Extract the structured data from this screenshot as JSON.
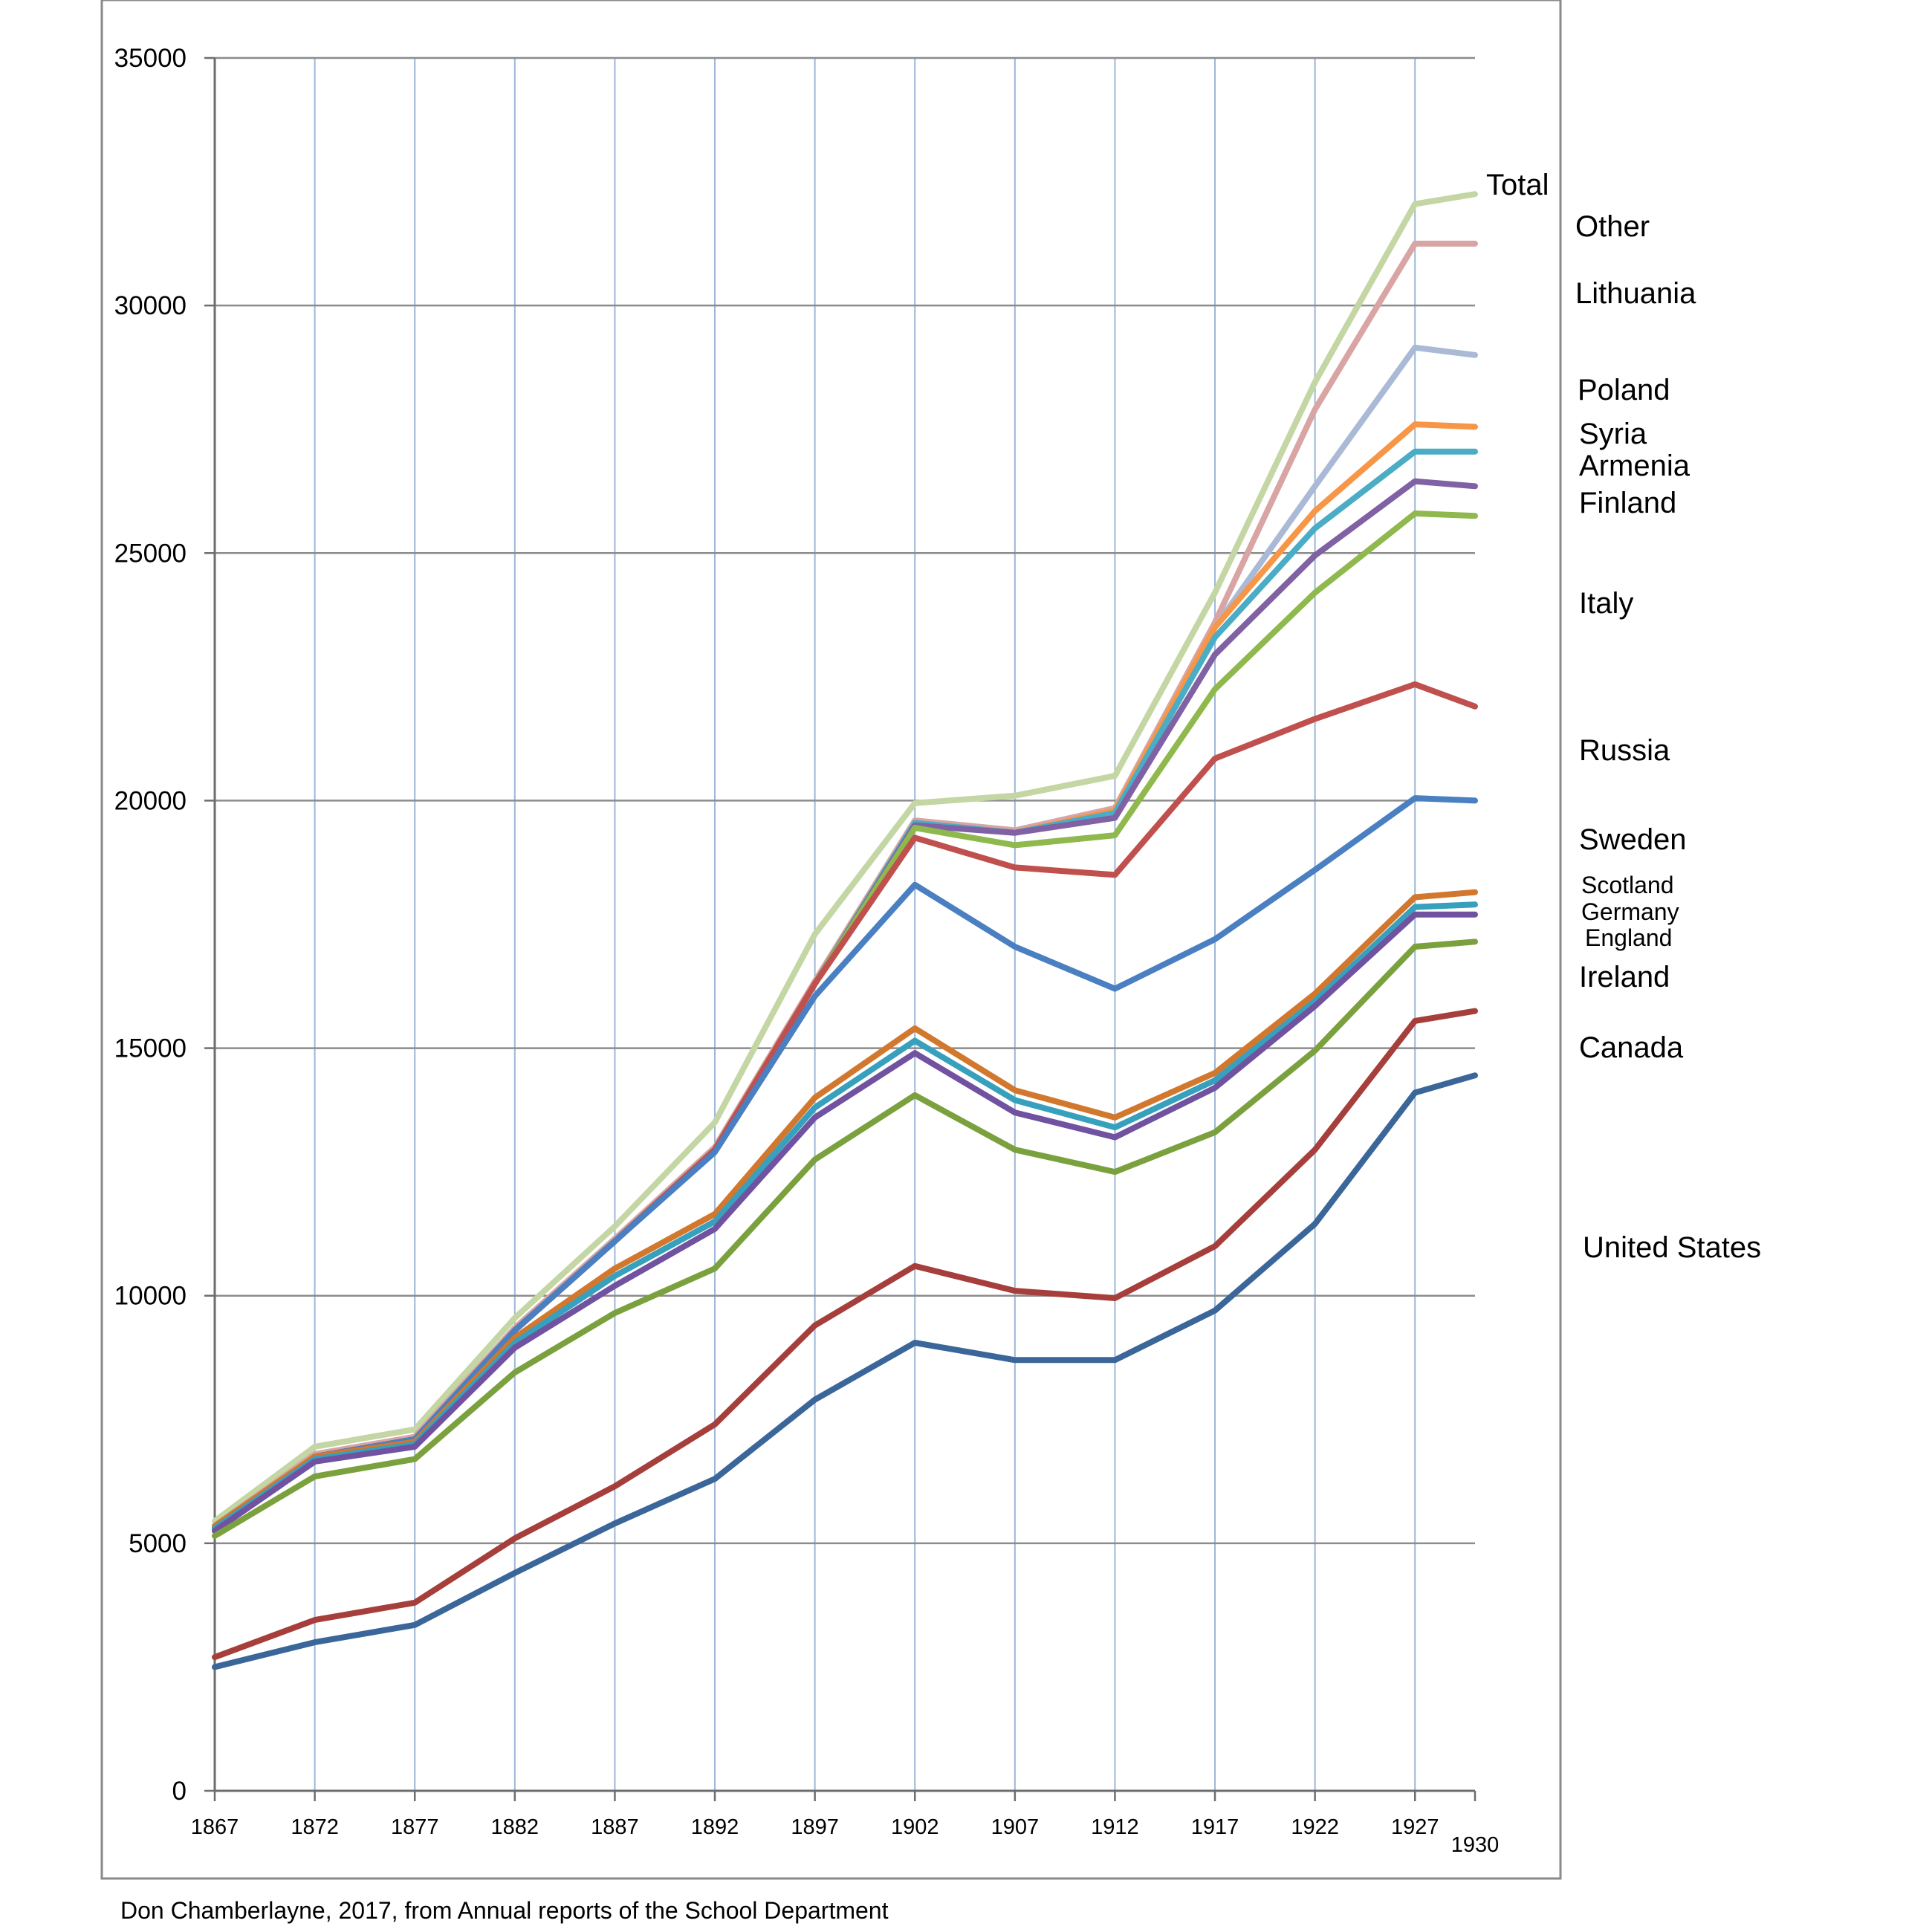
{
  "chart_data": {
    "type": "line",
    "title": "",
    "xlabel": "",
    "ylabel": "",
    "ylim": [
      0,
      35000
    ],
    "xlim": [
      1867,
      1930
    ],
    "y_ticks": [
      "0",
      "5000",
      "10000",
      "15000",
      "20000",
      "25000",
      "30000",
      "35000"
    ],
    "x_ticks": [
      "1867",
      "1872",
      "1877",
      "1882",
      "1887",
      "1892",
      "1897",
      "1902",
      "1907",
      "1912",
      "1917",
      "1922",
      "1927",
      "1930"
    ],
    "grid": {
      "horizontal": true,
      "vertical": true
    },
    "legend": "series labels at the right end of each line",
    "credit": "Don Chamberlayne, 2017, from Annual reports of the School Department",
    "series": [
      {
        "name": "United States",
        "color": "#3a6699",
        "x": [
          1867,
          1872,
          1877,
          1882,
          1887,
          1892,
          1897,
          1902,
          1907,
          1912,
          1917,
          1922,
          1927,
          1930
        ],
        "y": [
          2500,
          3000,
          3350,
          4400,
          5400,
          6300,
          7900,
          9050,
          8700,
          8700,
          9700,
          11450,
          14100,
          14450
        ]
      },
      {
        "name": "Canada",
        "color": "#a63f3c",
        "x": [
          1867,
          1872,
          1877,
          1882,
          1887,
          1892,
          1897,
          1902,
          1907,
          1912,
          1917,
          1922,
          1927,
          1930
        ],
        "y": [
          2700,
          3450,
          3800,
          5100,
          6150,
          7400,
          9400,
          10600,
          10100,
          9950,
          11000,
          12950,
          15550,
          15750
        ]
      },
      {
        "name": "Ireland",
        "color": "#7ba13e",
        "x": [
          1867,
          1872,
          1877,
          1882,
          1887,
          1892,
          1897,
          1902,
          1907,
          1912,
          1917,
          1922,
          1927,
          1930
        ],
        "y": [
          5150,
          6350,
          6700,
          8450,
          9650,
          10550,
          12750,
          14050,
          12950,
          12500,
          13300,
          14950,
          17050,
          17150
        ]
      },
      {
        "name": "England",
        "color": "#7152a0",
        "x": [
          1867,
          1872,
          1877,
          1882,
          1887,
          1892,
          1897,
          1902,
          1907,
          1912,
          1917,
          1922,
          1927,
          1930
        ],
        "y": [
          5250,
          6650,
          6950,
          8950,
          10200,
          11350,
          13600,
          14900,
          13700,
          13200,
          14200,
          15850,
          17700,
          17700
        ]
      },
      {
        "name": "Germany",
        "color": "#37a0bd",
        "x": [
          1867,
          1872,
          1877,
          1882,
          1887,
          1892,
          1897,
          1902,
          1907,
          1912,
          1917,
          1922,
          1927,
          1930
        ],
        "y": [
          5300,
          6700,
          7000,
          9050,
          10400,
          11500,
          13800,
          15150,
          13950,
          13400,
          14350,
          15950,
          17850,
          17900
        ]
      },
      {
        "name": "Scotland",
        "color": "#d2782e",
        "x": [
          1867,
          1872,
          1877,
          1882,
          1887,
          1892,
          1897,
          1902,
          1907,
          1912,
          1917,
          1922,
          1927,
          1930
        ],
        "y": [
          5350,
          6750,
          7050,
          9150,
          10550,
          11650,
          14000,
          15400,
          14150,
          13600,
          14500,
          16100,
          18050,
          18150
        ]
      },
      {
        "name": "Sweden",
        "color": "#4a7fc1",
        "x": [
          1867,
          1872,
          1877,
          1882,
          1887,
          1892,
          1897,
          1902,
          1907,
          1912,
          1917,
          1922,
          1927,
          1930
        ],
        "y": [
          5300,
          6750,
          7100,
          9300,
          11100,
          12900,
          16050,
          18300,
          17050,
          16200,
          17200,
          18600,
          20050,
          20000
        ]
      },
      {
        "name": "Russia",
        "color": "#c0504d",
        "x": [
          1867,
          1872,
          1877,
          1882,
          1887,
          1892,
          1897,
          1902,
          1907,
          1912,
          1917,
          1922,
          1927,
          1930
        ],
        "y": [
          5300,
          6750,
          7100,
          9300,
          11100,
          12950,
          16300,
          19250,
          18650,
          18500,
          20850,
          21650,
          22350,
          21900
        ]
      },
      {
        "name": "Italy",
        "color": "#8fb84d",
        "x": [
          1867,
          1872,
          1877,
          1882,
          1887,
          1892,
          1897,
          1902,
          1907,
          1912,
          1917,
          1922,
          1927,
          1930
        ],
        "y": [
          5300,
          6750,
          7100,
          9300,
          11100,
          12950,
          16300,
          19450,
          19100,
          19300,
          22250,
          24200,
          25800,
          25750
        ]
      },
      {
        "name": "Finland",
        "color": "#8062a4",
        "x": [
          1867,
          1872,
          1877,
          1882,
          1887,
          1892,
          1897,
          1902,
          1907,
          1912,
          1917,
          1922,
          1927,
          1930
        ],
        "y": [
          5300,
          6750,
          7100,
          9300,
          11100,
          12950,
          16300,
          19500,
          19350,
          19650,
          22950,
          24950,
          26450,
          26350
        ]
      },
      {
        "name": "Armenia",
        "color": "#4bacc6",
        "x": [
          1867,
          1872,
          1877,
          1882,
          1887,
          1892,
          1897,
          1902,
          1907,
          1912,
          1917,
          1922,
          1927,
          1930
        ],
        "y": [
          5300,
          6750,
          7100,
          9300,
          11100,
          12950,
          16300,
          19550,
          19350,
          19750,
          23300,
          25500,
          27050,
          27050
        ]
      },
      {
        "name": "Syria",
        "color": "#f79646",
        "x": [
          1867,
          1872,
          1877,
          1882,
          1887,
          1892,
          1897,
          1902,
          1907,
          1912,
          1917,
          1922,
          1927,
          1930
        ],
        "y": [
          5300,
          6750,
          7100,
          9300,
          11100,
          12950,
          16300,
          19550,
          19350,
          19800,
          23500,
          25850,
          27600,
          27550
        ]
      },
      {
        "name": "Poland",
        "color": "#a9b9d6",
        "x": [
          1867,
          1872,
          1877,
          1882,
          1887,
          1892,
          1897,
          1902,
          1907,
          1912,
          1917,
          1922,
          1927,
          1930
        ],
        "y": [
          5300,
          6750,
          7100,
          9300,
          11100,
          12950,
          16300,
          19550,
          19350,
          19800,
          23500,
          26350,
          29150,
          29000
        ]
      },
      {
        "name": "Lithuania",
        "color": "#d9a5a4",
        "x": [
          1867,
          1872,
          1877,
          1882,
          1887,
          1892,
          1897,
          1902,
          1907,
          1912,
          1917,
          1922,
          1927,
          1930
        ],
        "y": [
          5350,
          6800,
          7150,
          9350,
          11150,
          13000,
          16350,
          19600,
          19400,
          19850,
          23600,
          27900,
          31250,
          31250
        ]
      },
      {
        "name": "Other",
        "color": "#c3d6a3",
        "x": [
          1867,
          1872,
          1877,
          1882,
          1887,
          1892,
          1897,
          1902,
          1907,
          1912,
          1917,
          1922,
          1927,
          1930
        ],
        "y": [
          5450,
          6950,
          7300,
          9550,
          11400,
          13500,
          17300,
          19950,
          20100,
          20500,
          24200,
          28450,
          32050,
          32250
        ]
      }
    ],
    "end_labels": {
      "total": "Total",
      "other": "Other",
      "lithuania": "Lithuania",
      "poland": "Poland",
      "syria": "Syria",
      "armenia": "Armenia",
      "finland": "Finland",
      "italy": "Italy",
      "russia": "Russia",
      "sweden": "Sweden",
      "scotland": "Scotland",
      "germany": "Germany",
      "england": "England",
      "ireland": "Ireland",
      "canada": "Canada",
      "united_states": "United States"
    }
  }
}
